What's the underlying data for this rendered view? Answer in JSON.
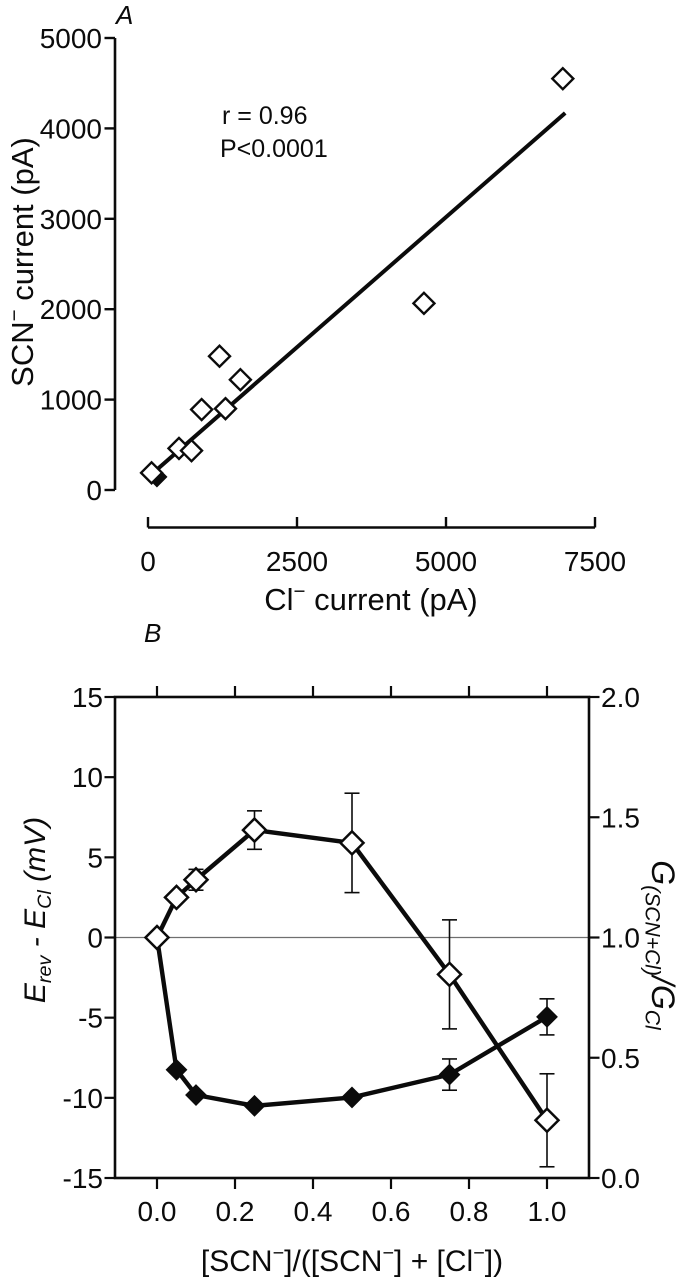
{
  "page": {
    "background": "#ffffff",
    "ink": "#0b0b0b"
  },
  "chart_data": [
    {
      "panel": "A",
      "type": "scatter",
      "marker": "open-diamond",
      "annotation": [
        "r = 0.96",
        "P<0.0001"
      ],
      "xlabel": "Cl− current (pA)",
      "ylabel": "SCN− current (pA)",
      "xlabel_segments": [
        {
          "t": "Cl"
        },
        {
          "t": "−",
          "s": "sup"
        },
        {
          "t": " current (pA)"
        }
      ],
      "ylabel_segments": [
        {
          "t": "SCN"
        },
        {
          "t": "−",
          "s": "sup"
        },
        {
          "t": " current (pA)"
        }
      ],
      "xlim": [
        0,
        7500
      ],
      "ylim": [
        0,
        5000
      ],
      "x_ticks": [
        0,
        2500,
        5000,
        7500
      ],
      "x_tick_labels": [
        "0",
        "2500",
        "5000",
        "7500"
      ],
      "y_ticks": [
        0,
        1000,
        2000,
        3000,
        4000,
        5000
      ],
      "y_tick_labels": [
        "0",
        "1000",
        "2000",
        "3000",
        "4000",
        "5000"
      ],
      "points": [
        [
          60,
          190
        ],
        [
          520,
          460
        ],
        [
          730,
          435
        ],
        [
          900,
          890
        ],
        [
          1300,
          900
        ],
        [
          1200,
          1480
        ],
        [
          1550,
          1220
        ],
        [
          4630,
          2065
        ],
        [
          6960,
          4550
        ]
      ],
      "overlap_point": [
        150,
        145
      ],
      "regression_line": {
        "x1": 0,
        "y1": 140,
        "x2": 7000,
        "y2": 4170
      },
      "grid": false,
      "legend": "none"
    },
    {
      "panel": "B",
      "type": "line",
      "xlabel": "[SCN−]/([SCN−] + [Cl−])",
      "xlabel_segments": [
        {
          "t": "[SCN"
        },
        {
          "t": "−",
          "s": "sup"
        },
        {
          "t": "]/([SCN"
        },
        {
          "t": "−",
          "s": "sup"
        },
        {
          "t": "] + [Cl"
        },
        {
          "t": "−",
          "s": "sup"
        },
        {
          "t": "])"
        }
      ],
      "ylabel_left": "Erev - ECl (mV)",
      "ylabel_left_segments": [
        {
          "t": "E",
          "i": true
        },
        {
          "t": "rev",
          "s": "sub",
          "i": true
        },
        {
          "t": " - ",
          "i": true
        },
        {
          "t": "E",
          "i": true
        },
        {
          "t": "Cl",
          "s": "sub",
          "i": true
        },
        {
          "t": " (",
          "i": true
        },
        {
          "t": "mV",
          "i": true
        },
        {
          "t": ")",
          "i": true
        }
      ],
      "ylabel_right": "G(SCN+Cl)/GCl",
      "ylabel_right_segments": [
        {
          "t": "G",
          "i": true
        },
        {
          "t": "(SCN+Cl)",
          "s": "sub",
          "i": true
        },
        {
          "t": "/",
          "i": true
        },
        {
          "t": "G",
          "i": true
        },
        {
          "t": "Cl",
          "s": "sub",
          "i": true
        }
      ],
      "xlim": [
        0,
        1
      ],
      "ylim_left": [
        -15,
        15
      ],
      "ylim_right": [
        0,
        2
      ],
      "x_ticks": [
        0,
        0.2,
        0.4,
        0.6,
        0.8,
        1.0
      ],
      "x_tick_labels": [
        "0.0",
        "0.2",
        "0.4",
        "0.6",
        "0.8",
        "1.0"
      ],
      "left_ticks": [
        15,
        10,
        5,
        0,
        -5,
        -10,
        -15
      ],
      "left_tick_labels": [
        "15",
        "10",
        "5",
        "0",
        "-5",
        "-10",
        "-15"
      ],
      "right_ticks": [
        2.0,
        1.5,
        1.0,
        0.5,
        0.0
      ],
      "right_tick_labels": [
        "2.0",
        "1.5",
        "1.0",
        "0.5",
        "0.0"
      ],
      "zero_reference_line": 0,
      "grid": false,
      "legend": "none",
      "series": [
        {
          "name": "Erev - ECl",
          "axis": "left",
          "marker": "open-diamond",
          "x": [
            0,
            0.05,
            0.1,
            0.25,
            0.5,
            0.75,
            1.0
          ],
          "y": [
            0,
            2.5,
            3.6,
            6.7,
            5.9,
            -2.3,
            -11.4
          ],
          "err": [
            0,
            0,
            0.65,
            1.2,
            3.1,
            3.4,
            2.9
          ]
        },
        {
          "name": "G(SCN+Cl)/GCl",
          "axis": "right",
          "marker": "filled-diamond",
          "first_marker_hidden": true,
          "x": [
            0,
            0.05,
            0.1,
            0.25,
            0.5,
            0.75,
            1.0
          ],
          "y": [
            1.0,
            0.45,
            0.345,
            0.3,
            0.335,
            0.43,
            0.67
          ],
          "err": [
            0,
            0,
            0,
            0,
            0,
            0.065,
            0.075
          ]
        }
      ]
    }
  ]
}
